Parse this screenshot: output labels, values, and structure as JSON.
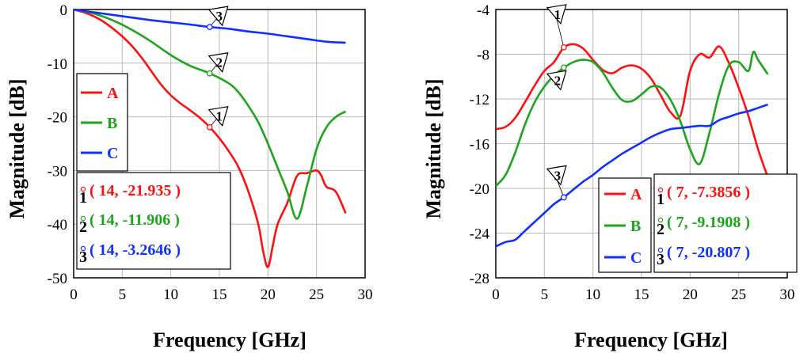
{
  "colors": {
    "A": "#ff1010",
    "B": "#1ea51e",
    "C": "#1030ff",
    "grid": "#b9b9b9"
  },
  "chart_data": [
    {
      "type": "line",
      "xlabel": "Frequency [GHz]",
      "ylabel": "Magnitude [dB]",
      "xlim": [
        0,
        30
      ],
      "ylim": [
        -50,
        0
      ],
      "xticks": [
        "0",
        "5",
        "10",
        "15",
        "20",
        "25",
        "30"
      ],
      "yticks": [
        "0",
        "-10",
        "-20",
        "-30",
        "-40",
        "-50"
      ],
      "grid": true,
      "legend_position": "left-middle",
      "series": [
        {
          "name": "A",
          "x": [
            0,
            1,
            2,
            3,
            4,
            5,
            6,
            7,
            8,
            9,
            10,
            11,
            12,
            13,
            14,
            15,
            16,
            17,
            18,
            19,
            19.5,
            20,
            20.5,
            21,
            22,
            23,
            24,
            25,
            25.5,
            26,
            27,
            28
          ],
          "y": [
            0,
            -0.5,
            -1.2,
            -2.2,
            -3.5,
            -5,
            -6.8,
            -9,
            -11.5,
            -14,
            -16,
            -17.5,
            -18.8,
            -20.2,
            -21.9,
            -24,
            -26.5,
            -29.5,
            -34,
            -40,
            -45,
            -48,
            -44,
            -40,
            -36,
            -31,
            -30.5,
            -30,
            -31,
            -33,
            -34,
            -38
          ]
        },
        {
          "name": "B",
          "x": [
            0,
            2,
            4,
            6,
            8,
            10,
            12,
            14,
            16,
            17,
            18,
            19,
            20,
            21,
            22,
            23,
            24,
            25,
            26,
            27,
            28
          ],
          "y": [
            0,
            -0.7,
            -2,
            -3.8,
            -6,
            -8.5,
            -10.5,
            -11.9,
            -13.8,
            -15.5,
            -18,
            -21,
            -25,
            -29.5,
            -34,
            -39,
            -33,
            -26,
            -22,
            -20,
            -19
          ]
        },
        {
          "name": "C",
          "x": [
            0,
            2,
            4,
            6,
            8,
            10,
            12,
            14,
            16,
            18,
            20,
            22,
            24,
            26,
            28
          ],
          "y": [
            0,
            -0.5,
            -1,
            -1.5,
            -2,
            -2.4,
            -2.8,
            -3.26,
            -3.6,
            -4.1,
            -4.5,
            -5,
            -5.5,
            -6,
            -6.2
          ]
        }
      ],
      "markers": [
        {
          "id": "1",
          "series": "A",
          "x": 14,
          "y": -21.935,
          "label": "( 14, -21.935 )"
        },
        {
          "id": "2",
          "series": "B",
          "x": 14,
          "y": -11.906,
          "label": "( 14, -11.906 )"
        },
        {
          "id": "3",
          "series": "C",
          "x": 14,
          "y": -3.2646,
          "label": "( 14, -3.2646 )"
        }
      ]
    },
    {
      "type": "line",
      "xlabel": "Frequency [GHz]",
      "ylabel": "Magnitude [dB]",
      "xlim": [
        0,
        30
      ],
      "ylim": [
        -28,
        -4
      ],
      "xticks": [
        "0",
        "5",
        "10",
        "15",
        "20",
        "25",
        "30"
      ],
      "yticks": [
        "-4",
        "-8",
        "-12",
        "-16",
        "-20",
        "-24",
        "-28"
      ],
      "grid": true,
      "legend_position": "bottom-middle",
      "series": [
        {
          "name": "A",
          "x": [
            0,
            1,
            2,
            3,
            4,
            5,
            6,
            7,
            8,
            9,
            10,
            11,
            12,
            13,
            14,
            15,
            16,
            17,
            18,
            19,
            20,
            21,
            22,
            23,
            24,
            25,
            26,
            27,
            28
          ],
          "y": [
            -14.7,
            -14.5,
            -13.7,
            -12.3,
            -10.8,
            -9.5,
            -8.7,
            -7.4,
            -7.1,
            -7.5,
            -8.5,
            -9.4,
            -9.7,
            -9.2,
            -9.0,
            -9.3,
            -10.2,
            -11.7,
            -13.2,
            -13.5,
            -9.5,
            -8.0,
            -8.3,
            -7.3,
            -8.8,
            -11,
            -13.5,
            -16.5,
            -19
          ]
        },
        {
          "name": "B",
          "x": [
            0,
            1,
            2,
            3,
            4,
            5,
            6,
            7,
            8,
            9,
            10,
            11,
            12,
            13,
            14,
            15,
            16,
            17,
            18,
            19,
            20,
            21,
            22,
            23,
            24,
            25,
            26,
            26.5,
            27,
            28
          ],
          "y": [
            -19.8,
            -18.8,
            -16.8,
            -14.3,
            -12.3,
            -10.9,
            -9.9,
            -9.2,
            -8.7,
            -8.5,
            -8.7,
            -9.6,
            -11,
            -12.1,
            -12.2,
            -11.6,
            -10.9,
            -11,
            -12.1,
            -14,
            -16.5,
            -17.8,
            -15,
            -11.5,
            -9,
            -8.7,
            -9.5,
            -7.8,
            -8.5,
            -9.8
          ]
        },
        {
          "name": "C",
          "x": [
            0,
            1,
            2,
            3,
            4,
            5,
            6,
            7,
            8,
            9,
            10,
            11,
            12,
            13,
            14,
            15,
            16,
            17,
            18,
            19,
            20,
            21,
            22,
            23,
            24,
            25,
            26,
            27,
            28
          ],
          "y": [
            -25.2,
            -24.8,
            -24.6,
            -23.8,
            -23.0,
            -22.2,
            -21.4,
            -20.8,
            -20.1,
            -19.4,
            -18.8,
            -18.1,
            -17.5,
            -16.9,
            -16.4,
            -15.9,
            -15.4,
            -15.0,
            -14.7,
            -14.6,
            -14.5,
            -14.4,
            -14.4,
            -13.9,
            -13.6,
            -13.3,
            -13.1,
            -12.8,
            -12.5
          ]
        }
      ],
      "markers": [
        {
          "id": "1",
          "series": "A",
          "x": 7,
          "y": -7.3856,
          "label": "( 7, -7.3856 )"
        },
        {
          "id": "2",
          "series": "B",
          "x": 7,
          "y": -9.1908,
          "label": "( 7, -9.1908 )"
        },
        {
          "id": "3",
          "series": "C",
          "x": 7,
          "y": -20.807,
          "label": "( 7, -20.807 )"
        }
      ]
    }
  ]
}
